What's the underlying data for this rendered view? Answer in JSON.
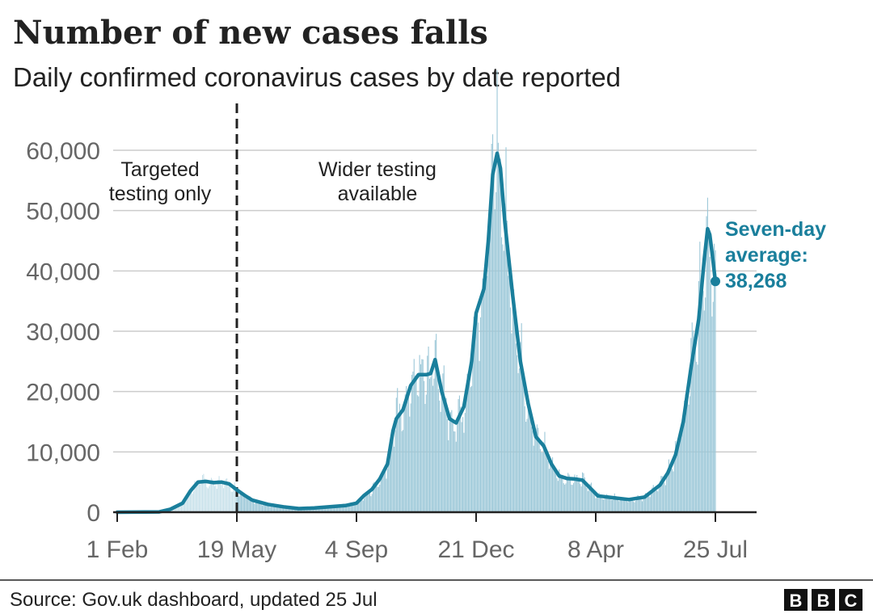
{
  "chart_data": {
    "type": "bar",
    "title": "Number of new cases falls",
    "subtitle": "Daily confirmed coronavirus cases by date reported",
    "xlabel": "",
    "ylabel": "",
    "ylim": [
      0,
      60000
    ],
    "yticks": [
      0,
      10000,
      20000,
      30000,
      40000,
      50000,
      60000
    ],
    "ytick_labels": [
      "0",
      "10,000",
      "20,000",
      "30,000",
      "40,000",
      "50,000",
      "60,000"
    ],
    "xlim": [
      "2020-02-01",
      "2021-07-25"
    ],
    "xticks": [
      "2020-02-01",
      "2020-05-19",
      "2020-09-04",
      "2020-12-21",
      "2021-04-08",
      "2021-07-25"
    ],
    "xtick_labels": [
      "1 Feb",
      "19 May",
      "4 Sep",
      "21 Dec",
      "8 Apr",
      "25 Jul"
    ],
    "grid": true,
    "colors": {
      "bars": "#9cc8d8",
      "bars_targeted": "#c9e2eb",
      "line": "#1a7f9c",
      "divider": "#222222"
    },
    "divider": {
      "date": "2020-05-19",
      "style": "dashed"
    },
    "annotations": {
      "before": [
        "Targeted",
        "testing only"
      ],
      "after": [
        "Wider testing",
        "available"
      ]
    },
    "series": [
      {
        "type": "line",
        "label_lines": [
          "Seven-day",
          "average:",
          "38,268"
        ],
        "last_value": 38268,
        "points": [
          [
            "2020-02-01",
            0
          ],
          [
            "2020-03-10",
            50
          ],
          [
            "2020-03-20",
            500
          ],
          [
            "2020-03-31",
            1500
          ],
          [
            "2020-04-07",
            3500
          ],
          [
            "2020-04-14",
            5000
          ],
          [
            "2020-04-21",
            5100
          ],
          [
            "2020-04-28",
            4900
          ],
          [
            "2020-05-05",
            5000
          ],
          [
            "2020-05-12",
            4700
          ],
          [
            "2020-05-19",
            3700
          ],
          [
            "2020-05-26",
            2800
          ],
          [
            "2020-06-02",
            2000
          ],
          [
            "2020-06-16",
            1300
          ],
          [
            "2020-06-30",
            900
          ],
          [
            "2020-07-14",
            600
          ],
          [
            "2020-07-28",
            700
          ],
          [
            "2020-08-11",
            900
          ],
          [
            "2020-08-25",
            1100
          ],
          [
            "2020-09-04",
            1500
          ],
          [
            "2020-09-11",
            2800
          ],
          [
            "2020-09-18",
            3800
          ],
          [
            "2020-09-25",
            5500
          ],
          [
            "2020-10-02",
            8000
          ],
          [
            "2020-10-07",
            13500
          ],
          [
            "2020-10-10",
            15500
          ],
          [
            "2020-10-16",
            17000
          ],
          [
            "2020-10-23",
            21000
          ],
          [
            "2020-10-30",
            22800
          ],
          [
            "2020-11-06",
            22800
          ],
          [
            "2020-11-10",
            23000
          ],
          [
            "2020-11-14",
            25300
          ],
          [
            "2020-11-20",
            20000
          ],
          [
            "2020-11-27",
            15500
          ],
          [
            "2020-12-03",
            14800
          ],
          [
            "2020-12-10",
            17500
          ],
          [
            "2020-12-17",
            25000
          ],
          [
            "2020-12-21",
            33000
          ],
          [
            "2020-12-28",
            37000
          ],
          [
            "2021-01-01",
            45000
          ],
          [
            "2021-01-05",
            56000
          ],
          [
            "2021-01-09",
            59500
          ],
          [
            "2021-01-12",
            57000
          ],
          [
            "2021-01-16",
            48000
          ],
          [
            "2021-01-23",
            36000
          ],
          [
            "2021-01-30",
            25000
          ],
          [
            "2021-02-06",
            18000
          ],
          [
            "2021-02-13",
            12500
          ],
          [
            "2021-02-20",
            11000
          ],
          [
            "2021-02-27",
            8000
          ],
          [
            "2021-03-06",
            6000
          ],
          [
            "2021-03-13",
            5600
          ],
          [
            "2021-03-20",
            5500
          ],
          [
            "2021-03-27",
            5300
          ],
          [
            "2021-04-03",
            4000
          ],
          [
            "2021-04-10",
            2700
          ],
          [
            "2021-04-24",
            2400
          ],
          [
            "2021-05-08",
            2100
          ],
          [
            "2021-05-22",
            2500
          ],
          [
            "2021-06-05",
            4500
          ],
          [
            "2021-06-12",
            6500
          ],
          [
            "2021-06-19",
            9500
          ],
          [
            "2021-06-26",
            15000
          ],
          [
            "2021-07-03",
            24000
          ],
          [
            "2021-07-10",
            32000
          ],
          [
            "2021-07-15",
            42000
          ],
          [
            "2021-07-18",
            47000
          ],
          [
            "2021-07-20",
            46000
          ],
          [
            "2021-07-22",
            43000
          ],
          [
            "2021-07-25",
            38268
          ]
        ]
      }
    ]
  },
  "footer": {
    "source": "Source: Gov.uk dashboard, updated 25 Jul",
    "logo": [
      "B",
      "B",
      "C"
    ]
  }
}
